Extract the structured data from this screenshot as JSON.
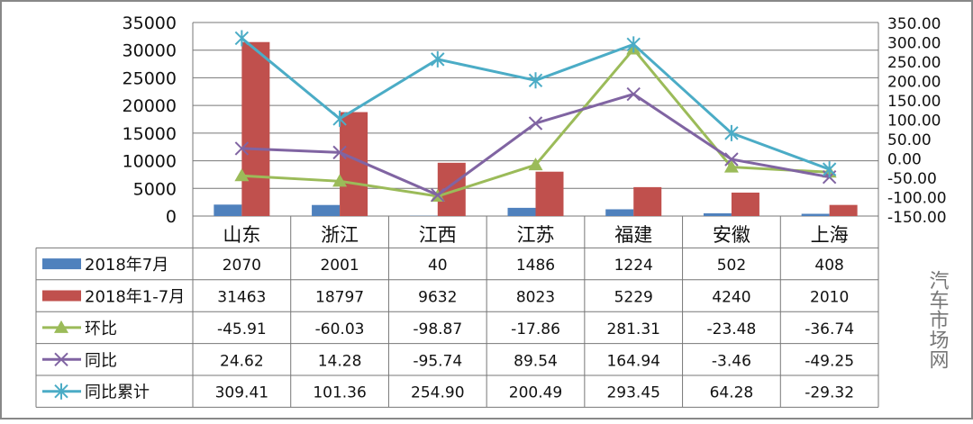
{
  "chart_data": {
    "type": "bar",
    "title": "",
    "categories": [
      "山东",
      "浙江",
      "江西",
      "江苏",
      "福建",
      "安徽",
      "上海"
    ],
    "left_axis": {
      "ticks": [
        "0",
        "5000",
        "10000",
        "15000",
        "20000",
        "25000",
        "30000",
        "35000"
      ],
      "ylim": [
        0,
        35000
      ]
    },
    "right_axis": {
      "ticks": [
        "-150.00",
        "-100.00",
        "-50.00",
        "0.00",
        "50.00",
        "100.00",
        "150.00",
        "200.00",
        "250.00",
        "300.00",
        "350.00"
      ],
      "ylim": [
        -150,
        350
      ]
    },
    "grid": true,
    "legend": "table-bottom",
    "series": [
      {
        "name": "2018年7月",
        "kind": "bar",
        "axis": "left",
        "color": "#4f81bd",
        "values": [
          2070,
          2001,
          40,
          1486,
          1224,
          502,
          408
        ],
        "labels": [
          "2070",
          "2001",
          "40",
          "1486",
          "1224",
          "502",
          "408"
        ]
      },
      {
        "name": "2018年1-7月",
        "kind": "bar",
        "axis": "left",
        "color": "#c0504d",
        "values": [
          31463,
          18797,
          9632,
          8023,
          5229,
          4240,
          2010
        ],
        "labels": [
          "31463",
          "18797",
          "9632",
          "8023",
          "5229",
          "4240",
          "2010"
        ]
      },
      {
        "name": "环比",
        "kind": "line",
        "marker": "triangle",
        "axis": "right",
        "color": "#9bbb59",
        "values": [
          -45.91,
          -60.03,
          -98.87,
          -17.86,
          281.31,
          -23.48,
          -36.74
        ],
        "labels": [
          "-45.91",
          "-60.03",
          "-98.87",
          "-17.86",
          "281.31",
          "-23.48",
          "-36.74"
        ]
      },
      {
        "name": "同比",
        "kind": "line",
        "marker": "x",
        "axis": "right",
        "color": "#8064a2",
        "values": [
          24.62,
          14.28,
          -95.74,
          89.54,
          164.94,
          -3.46,
          -49.25
        ],
        "labels": [
          "24.62",
          "14.28",
          "-95.74",
          "89.54",
          "164.94",
          "-3.46",
          "-49.25"
        ]
      },
      {
        "name": "同比累计",
        "kind": "line",
        "marker": "star",
        "axis": "right",
        "color": "#4bacc6",
        "values": [
          309.41,
          101.36,
          254.9,
          200.49,
          293.45,
          64.28,
          -29.32
        ],
        "labels": [
          "309.41",
          "101.36",
          "254.90",
          "200.49",
          "293.45",
          "64.28",
          "-29.32"
        ]
      }
    ]
  },
  "watermark": "汽车市场网"
}
